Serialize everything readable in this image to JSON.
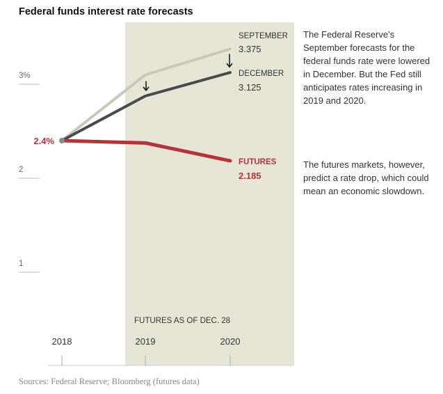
{
  "title": "Federal funds interest rate forecasts",
  "notes": [
    "The Federal Reserve's September forecasts for the federal funds rate were lowered in December. But the Fed still anticipates rates increasing in 2019 and 2020.",
    "The futures markets, however, predict a rate drop, which could mean an economic slowdown."
  ],
  "source": "Sources: Federal Reserve; Bloomberg (futures data)",
  "shade_label": "FUTURES AS OF DEC. 28",
  "start_label": "2.4%",
  "colors": {
    "september": "#c9c8bc",
    "december": "#4a4a4a",
    "futures": "#b5343a",
    "shade": "#e7e5d6"
  },
  "chart_data": {
    "type": "line",
    "title": "Federal funds interest rate forecasts",
    "x": [
      "2018",
      "2019",
      "2020"
    ],
    "yticks": [
      {
        "value": 3,
        "label": "3%"
      },
      {
        "value": 2,
        "label": "2"
      },
      {
        "value": 1,
        "label": "1"
      }
    ],
    "ylim": [
      0.3,
      3.9
    ],
    "shaded_range": [
      "2019",
      "2020"
    ],
    "series": [
      {
        "key": "september",
        "name": "SEPTEMBER",
        "value_label": "3.375",
        "values": [
          2.4,
          3.1,
          3.375
        ]
      },
      {
        "key": "december",
        "name": "DECEMBER",
        "value_label": "3.125",
        "values": [
          2.4,
          2.875,
          3.125
        ]
      },
      {
        "key": "futures",
        "name": "FUTURES",
        "value_label": "2.185",
        "values": [
          2.4,
          2.375,
          2.185
        ]
      }
    ],
    "annotations": [
      {
        "type": "down-arrow",
        "x": "2019",
        "series": "december"
      },
      {
        "type": "down-arrow",
        "x": "2020",
        "series": "december"
      }
    ]
  }
}
